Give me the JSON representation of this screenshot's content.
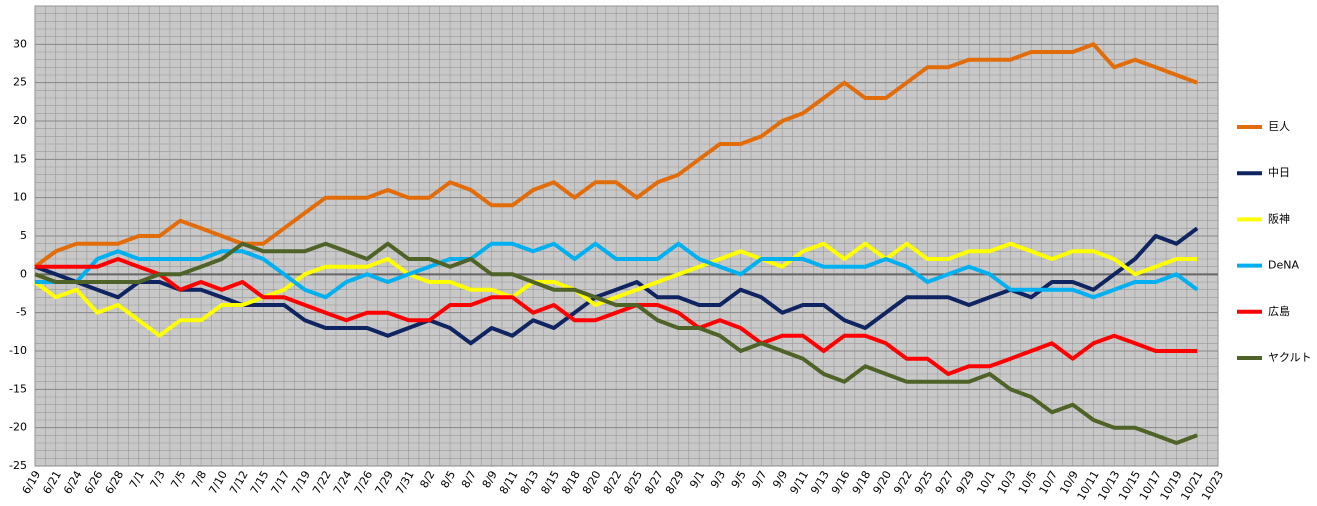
{
  "chart_data": {
    "type": "line",
    "categories": [
      "6/19",
      "6/21",
      "6/24",
      "6/26",
      "6/28",
      "7/1",
      "7/3",
      "7/5",
      "7/8",
      "7/10",
      "7/12",
      "7/15",
      "7/17",
      "7/19",
      "7/22",
      "7/24",
      "7/26",
      "7/29",
      "7/31",
      "8/2",
      "8/5",
      "8/7",
      "8/9",
      "8/11",
      "8/13",
      "8/15",
      "8/18",
      "8/20",
      "8/22",
      "8/25",
      "8/27",
      "8/29",
      "9/1",
      "9/3",
      "9/5",
      "9/7",
      "9/9",
      "9/11",
      "9/13",
      "9/16",
      "9/18",
      "9/20",
      "9/22",
      "9/25",
      "9/27",
      "9/29",
      "10/1",
      "10/3",
      "10/5",
      "10/7",
      "10/9",
      "10/11",
      "10/13",
      "10/15",
      "10/17",
      "10/19",
      "10/21",
      "10/23"
    ],
    "series": [
      {
        "name": "巨人",
        "color": "#e36c0a",
        "values": [
          1,
          3,
          4,
          4,
          4,
          5,
          5,
          7,
          6,
          5,
          4,
          4,
          6,
          8,
          10,
          10,
          10,
          11,
          10,
          10,
          12,
          11,
          9,
          9,
          11,
          12,
          10,
          12,
          12,
          10,
          12,
          13,
          15,
          17,
          17,
          18,
          20,
          21,
          23,
          25,
          23,
          23,
          25,
          27,
          27,
          28,
          28,
          28,
          29,
          29,
          29,
          30,
          27,
          28,
          27,
          26,
          25,
          null
        ]
      },
      {
        "name": "中日",
        "color": "#0f2461",
        "values": [
          1,
          0,
          -1,
          -2,
          -3,
          -1,
          -1,
          -2,
          -2,
          -3,
          -4,
          -4,
          -4,
          -6,
          -7,
          -7,
          -7,
          -8,
          -7,
          -6,
          -7,
          -9,
          -7,
          -8,
          -6,
          -7,
          -5,
          -3,
          -2,
          -1,
          -3,
          -3,
          -4,
          -4,
          -2,
          -3,
          -5,
          -4,
          -4,
          -6,
          -7,
          -5,
          -3,
          -3,
          -3,
          -4,
          -3,
          -2,
          -3,
          -1,
          -1,
          -2,
          0,
          2,
          5,
          4,
          6,
          null
        ]
      },
      {
        "name": "阪神",
        "color": "#ffff00",
        "values": [
          -1,
          -3,
          -2,
          -5,
          -4,
          -6,
          -8,
          -6,
          -6,
          -4,
          -4,
          -3,
          -2,
          0,
          1,
          1,
          1,
          2,
          0,
          -1,
          -1,
          -2,
          -2,
          -3,
          -1,
          -1,
          -2,
          -4,
          -3,
          -2,
          -1,
          0,
          1,
          2,
          3,
          2,
          1,
          3,
          4,
          2,
          4,
          2,
          4,
          2,
          2,
          3,
          3,
          4,
          3,
          2,
          3,
          3,
          2,
          0,
          1,
          2,
          2,
          null
        ]
      },
      {
        "name": "DeNA",
        "color": "#00b0f0",
        "values": [
          -1,
          -1,
          -1,
          2,
          3,
          2,
          2,
          2,
          2,
          3,
          3,
          2,
          0,
          -2,
          -3,
          -1,
          0,
          -1,
          0,
          1,
          2,
          2,
          4,
          4,
          3,
          4,
          2,
          4,
          2,
          2,
          2,
          4,
          2,
          1,
          0,
          2,
          2,
          2,
          1,
          1,
          1,
          2,
          1,
          -1,
          0,
          1,
          0,
          -2,
          -2,
          -2,
          -2,
          -3,
          -2,
          -1,
          -1,
          0,
          -2,
          null
        ]
      },
      {
        "name": "広島",
        "color": "#ff0000",
        "values": [
          1,
          1,
          1,
          1,
          2,
          1,
          0,
          -2,
          -1,
          -2,
          -1,
          -3,
          -3,
          -4,
          -5,
          -6,
          -5,
          -5,
          -6,
          -6,
          -4,
          -4,
          -3,
          -3,
          -5,
          -4,
          -6,
          -6,
          -5,
          -4,
          -4,
          -5,
          -7,
          -6,
          -7,
          -9,
          -8,
          -8,
          -10,
          -8,
          -8,
          -9,
          -11,
          -11,
          -13,
          -12,
          -12,
          -11,
          -10,
          -9,
          -11,
          -9,
          -8,
          -9,
          -10,
          -10,
          -10,
          null
        ]
      },
      {
        "name": "ヤクルト",
        "color": "#4f6228",
        "values": [
          0,
          -1,
          -1,
          -1,
          -1,
          -1,
          0,
          0,
          1,
          2,
          4,
          3,
          3,
          3,
          4,
          3,
          2,
          4,
          2,
          2,
          1,
          2,
          0,
          0,
          -1,
          -2,
          -2,
          -3,
          -4,
          -4,
          -6,
          -7,
          -7,
          -8,
          -10,
          -9,
          -10,
          -11,
          -13,
          -14,
          -12,
          -13,
          -14,
          -14,
          -14,
          -14,
          -13,
          -15,
          -16,
          -18,
          -17,
          -19,
          -20,
          -20,
          -21,
          -22,
          -21,
          null
        ]
      }
    ],
    "ylim": [
      -25,
      35
    ],
    "yticks": [
      -25,
      -20,
      -15,
      -10,
      -5,
      0,
      5,
      10,
      15,
      20,
      25,
      30
    ],
    "grid": true
  }
}
